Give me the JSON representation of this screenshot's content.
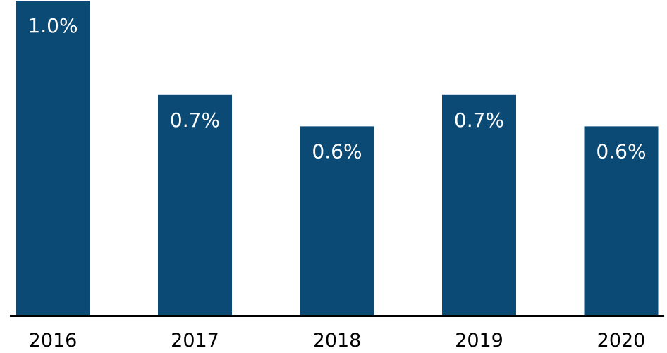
{
  "chart_data": {
    "type": "bar",
    "categories": [
      "2016",
      "2017",
      "2018",
      "2019",
      "2020"
    ],
    "values": [
      1.0,
      0.7,
      0.6,
      0.7,
      0.6
    ],
    "data_labels": [
      "1.0%",
      "0.7%",
      "0.6%",
      "0.7%",
      "0.6%"
    ],
    "title": "",
    "xlabel": "",
    "ylabel": "",
    "ylim": [
      0,
      1.0
    ],
    "grid": false,
    "legend": "none",
    "colors": {
      "bar": "#0b4a74",
      "bar_label": "#ffffff",
      "axis": "#000000",
      "tick_label": "#000000"
    }
  }
}
